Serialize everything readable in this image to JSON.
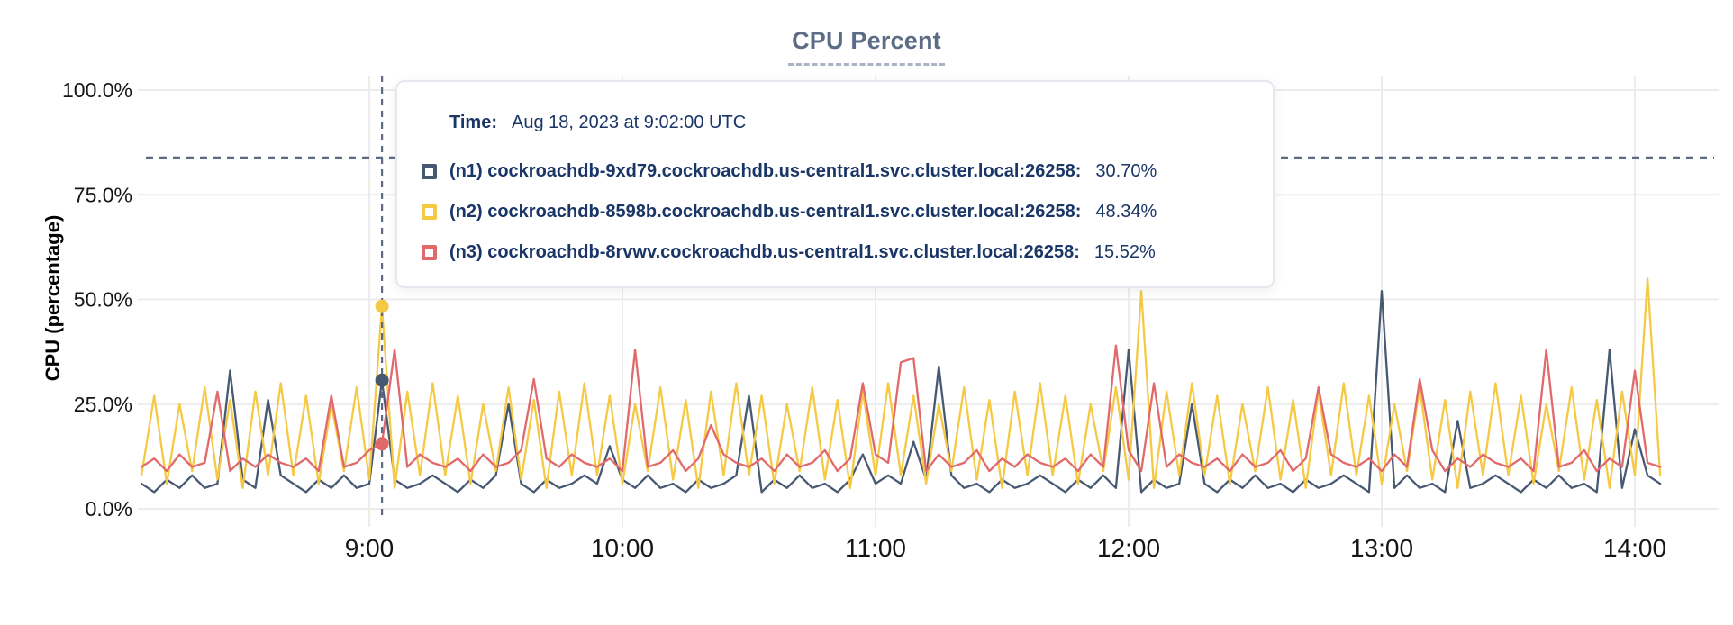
{
  "header": {
    "title": "CPU Percent"
  },
  "tooltip": {
    "time_label": "Time:",
    "time_value": "Aug 18, 2023 at 9:02:00 UTC",
    "rows": [
      {
        "id": "n1",
        "label": "(n1) cockroachdb-9xd79.cockroachdb.us-central1.svc.cluster.local:26258:",
        "value": "30.70%",
        "color": "#475872"
      },
      {
        "id": "n2",
        "label": "(n2) cockroachdb-8598b.cockroachdb.us-central1.svc.cluster.local:26258:",
        "value": "48.34%",
        "color": "#f5c944"
      },
      {
        "id": "n3",
        "label": "(n3) cockroachdb-8rvwv.cockroachdb.us-central1.svc.cluster.local:26258:",
        "value": "15.52%",
        "color": "#e2696b"
      }
    ]
  },
  "chart_data": {
    "type": "line",
    "title": "CPU Percent",
    "ylabel": "CPU (percentage)",
    "x_axis": {
      "tick_labels": [
        "9:00",
        "10:00",
        "11:00",
        "12:00",
        "13:00",
        "14:00"
      ],
      "tick_hours": [
        9,
        10,
        11,
        12,
        13,
        14
      ]
    },
    "y_axis": {
      "tick_labels": [
        "100.0%",
        "75.0%",
        "50.0%",
        "25.0%",
        "0.0%"
      ],
      "tick_values": [
        100,
        75,
        50,
        25,
        0
      ],
      "unit": "%",
      "ylim": [
        0,
        100
      ]
    },
    "grid": true,
    "t_start_hours": 8.1,
    "t_step_hours": 0.05,
    "hover": {
      "time_text": "Aug 18, 2023 at 9:02:00 UTC",
      "cursor_t_hours": 9.05,
      "cursor_y_percent": 83.9,
      "values": {
        "n1": 30.7,
        "n2": 48.34,
        "n3": 15.52
      }
    },
    "series": [
      {
        "id": "n1",
        "name": "(n1) cockroachdb-9xd79.cockroachdb.us-central1.svc.cluster.local:26258",
        "color": "#475872",
        "values": [
          6,
          4,
          7,
          5,
          8,
          5,
          6,
          33,
          7,
          5,
          26,
          8,
          6,
          4,
          7,
          5,
          8,
          5,
          6,
          30.7,
          7,
          5,
          6,
          8,
          6,
          4,
          7,
          5,
          8,
          25,
          6,
          4,
          7,
          5,
          6,
          8,
          6,
          15,
          7,
          5,
          8,
          5,
          6,
          4,
          7,
          5,
          6,
          8,
          27,
          4,
          7,
          5,
          8,
          5,
          6,
          4,
          7,
          13,
          6,
          8,
          6,
          16,
          7,
          34,
          8,
          5,
          6,
          4,
          7,
          5,
          6,
          8,
          6,
          4,
          7,
          5,
          8,
          5,
          38,
          4,
          7,
          5,
          6,
          25,
          6,
          4,
          7,
          5,
          8,
          5,
          6,
          4,
          7,
          5,
          6,
          8,
          6,
          4,
          52,
          5,
          8,
          5,
          6,
          4,
          21,
          5,
          6,
          8,
          6,
          4,
          7,
          5,
          8,
          5,
          6,
          4,
          38,
          5,
          19,
          8,
          6
        ]
      },
      {
        "id": "n2",
        "name": "(n2) cockroachdb-8598b.cockroachdb.us-central1.svc.cluster.local:26258",
        "color": "#f5c944",
        "values": [
          8,
          27,
          6,
          25,
          9,
          29,
          7,
          26,
          5,
          28,
          8,
          30,
          8,
          27,
          6,
          25,
          9,
          29,
          7,
          48.3,
          5,
          28,
          8,
          30,
          8,
          27,
          6,
          25,
          9,
          29,
          7,
          26,
          5,
          28,
          8,
          30,
          8,
          27,
          6,
          25,
          9,
          29,
          7,
          26,
          5,
          28,
          8,
          30,
          8,
          27,
          6,
          25,
          9,
          29,
          7,
          26,
          5,
          28,
          8,
          30,
          8,
          27,
          6,
          25,
          9,
          29,
          7,
          26,
          5,
          28,
          8,
          30,
          8,
          27,
          6,
          25,
          9,
          29,
          7,
          52,
          5,
          28,
          8,
          30,
          8,
          27,
          6,
          25,
          9,
          29,
          7,
          26,
          5,
          28,
          8,
          30,
          8,
          27,
          6,
          25,
          9,
          29,
          7,
          26,
          5,
          28,
          8,
          30,
          8,
          27,
          6,
          25,
          9,
          29,
          7,
          26,
          5,
          28,
          8,
          55,
          8
        ]
      },
      {
        "id": "n3",
        "name": "(n3) cockroachdb-8rvwv.cockroachdb.us-central1.svc.cluster.local:26258",
        "color": "#e2696b",
        "values": [
          10,
          12,
          9,
          13,
          10,
          11,
          28,
          9,
          12,
          10,
          13,
          11,
          10,
          12,
          9,
          27,
          10,
          11,
          14,
          15.5,
          38,
          10,
          13,
          11,
          10,
          12,
          9,
          13,
          10,
          11,
          14,
          31,
          12,
          10,
          13,
          11,
          10,
          12,
          9,
          38,
          10,
          11,
          14,
          9,
          12,
          20,
          13,
          11,
          10,
          12,
          9,
          13,
          10,
          11,
          14,
          9,
          12,
          30,
          13,
          11,
          35,
          36,
          9,
          13,
          10,
          11,
          14,
          9,
          12,
          10,
          13,
          11,
          10,
          12,
          9,
          13,
          10,
          39,
          14,
          9,
          30,
          10,
          13,
          11,
          10,
          12,
          9,
          13,
          10,
          11,
          14,
          9,
          12,
          29,
          13,
          11,
          10,
          12,
          9,
          13,
          10,
          31,
          14,
          9,
          12,
          10,
          13,
          11,
          10,
          12,
          9,
          38,
          10,
          11,
          14,
          9,
          12,
          10,
          33,
          11,
          10
        ]
      }
    ]
  }
}
